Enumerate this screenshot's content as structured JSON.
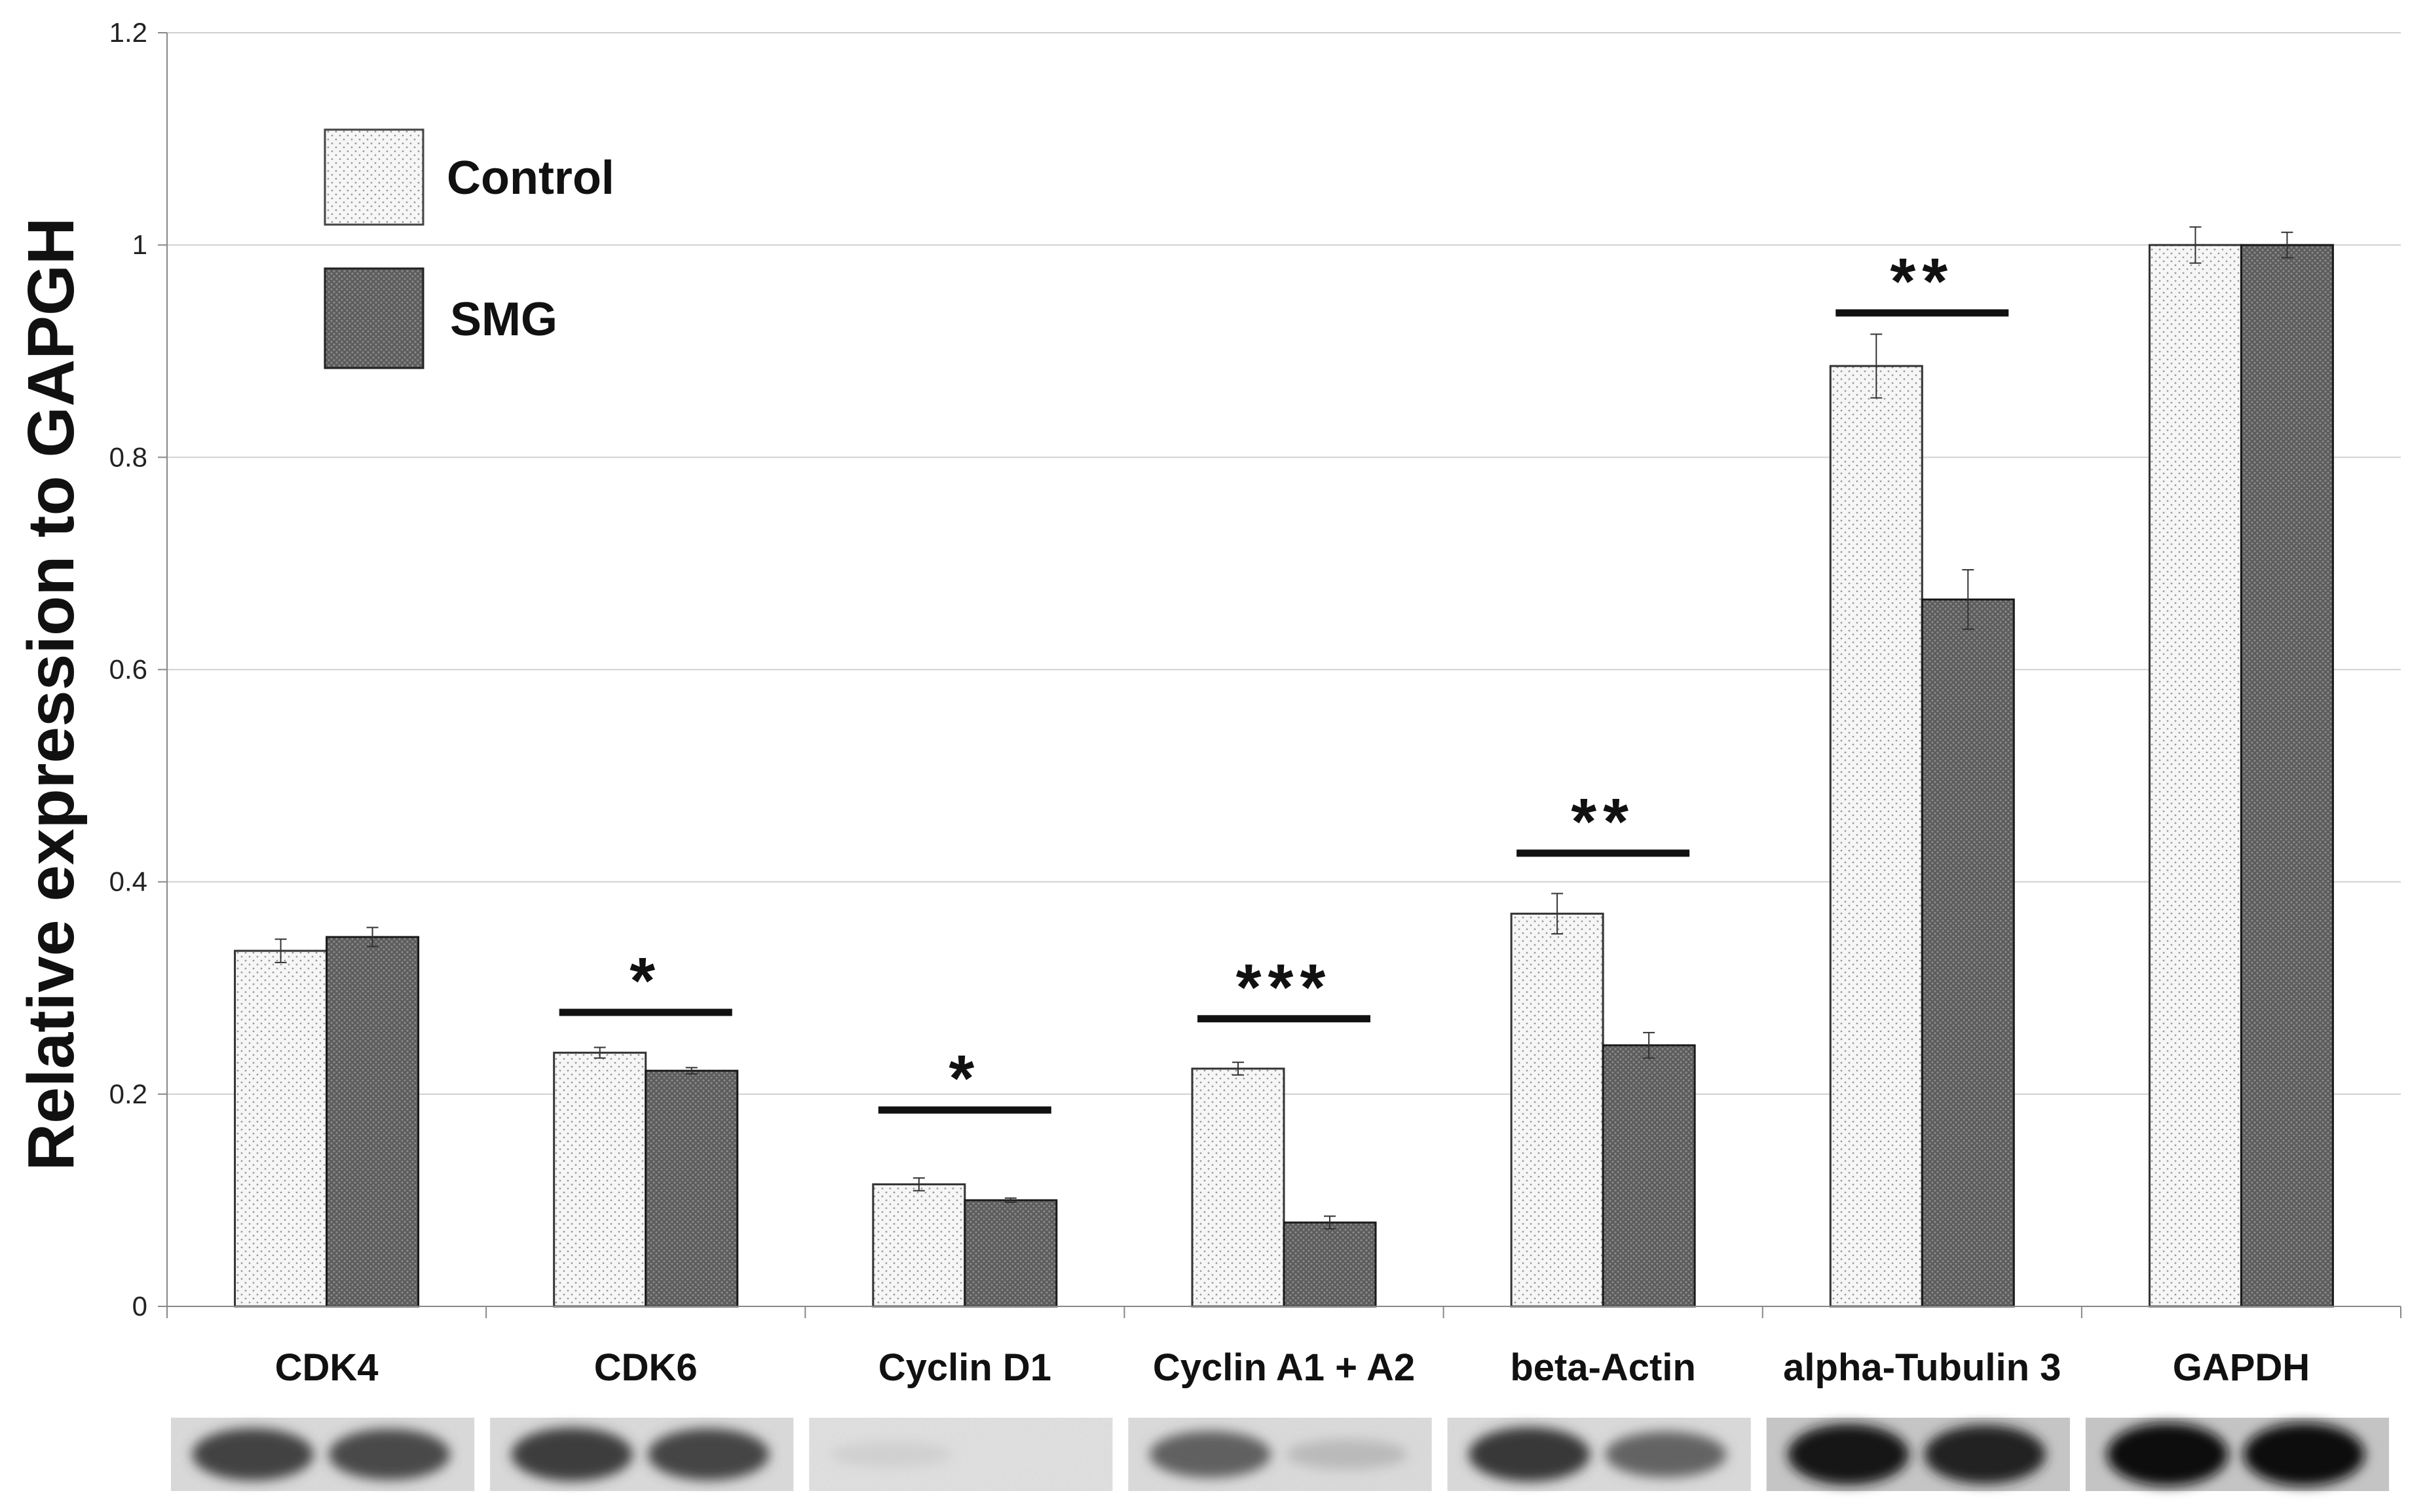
{
  "chart_data": {
    "type": "bar",
    "title": "",
    "ylabel": "Relative expression to GAPGH",
    "xlabel": "",
    "ylim": [
      0,
      1.2
    ],
    "yticks": [
      "0",
      "0.2",
      "0.4",
      "0.6",
      "0.8",
      "1",
      "1.2"
    ],
    "ytick_values": [
      0,
      0.2,
      0.4,
      0.6,
      0.8,
      1.0,
      1.2
    ],
    "grid": true,
    "legend_position": "top-left",
    "categories": [
      "CDK4",
      "CDK6",
      "Cyclin D1",
      "Cyclin A1 + A2",
      "beta-Actin",
      "alpha-Tubulin 3",
      "GAPDH"
    ],
    "series": [
      {
        "name": "Control",
        "pattern": "light-dots",
        "color": "#f4f4f4",
        "values": [
          0.335,
          0.239,
          0.115,
          0.224,
          0.37,
          0.886,
          1.0
        ],
        "errors": [
          0.011,
          0.005,
          0.006,
          0.006,
          0.019,
          0.03,
          0.017
        ]
      },
      {
        "name": "SMG",
        "pattern": "dark-crosshatch",
        "color": "#606060",
        "values": [
          0.348,
          0.222,
          0.1,
          0.079,
          0.246,
          0.666,
          1.0
        ],
        "errors": [
          0.009,
          0.003,
          0.002,
          0.006,
          0.012,
          0.028,
          0.012
        ]
      }
    ],
    "significance": [
      {
        "category": "CDK6",
        "label": "*",
        "level": 0.277
      },
      {
        "category": "Cyclin D1",
        "label": "*",
        "level": 0.185
      },
      {
        "category": "Cyclin A1 + A2",
        "label": "***",
        "level": 0.271
      },
      {
        "category": "beta-Actin",
        "label": "**",
        "level": 0.427
      },
      {
        "category": "alpha-Tubulin 3",
        "label": "**",
        "level": 0.936
      }
    ],
    "blot_intensity": [
      {
        "category": "CDK4",
        "control": 0.75,
        "smg": 0.72
      },
      {
        "category": "CDK6",
        "control": 0.78,
        "smg": 0.74
      },
      {
        "category": "Cyclin D1",
        "control": 0.12,
        "smg": 0.06
      },
      {
        "category": "Cyclin A1 + A2",
        "control": 0.62,
        "smg": 0.22
      },
      {
        "category": "beta-Actin",
        "control": 0.8,
        "smg": 0.6
      },
      {
        "category": "alpha-Tubulin 3",
        "control": 0.95,
        "smg": 0.9
      },
      {
        "category": "GAPDH",
        "control": 1.0,
        "smg": 1.0
      }
    ]
  }
}
